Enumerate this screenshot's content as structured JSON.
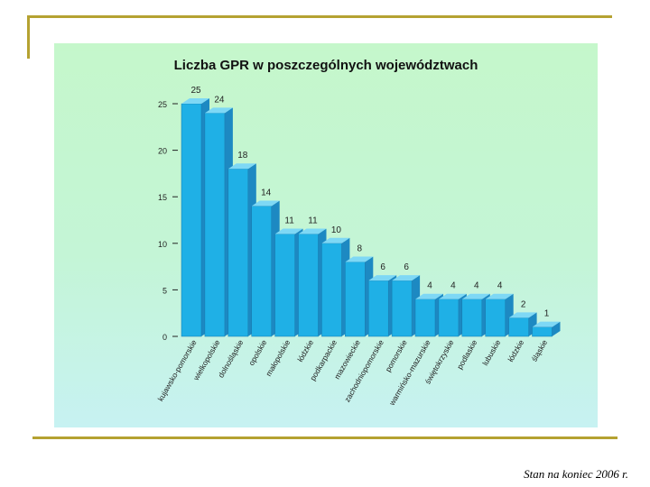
{
  "footer": {
    "caption": "Stan na koniec 2006 r."
  },
  "colors": {
    "bar_front": "#1fb0e6",
    "bar_side": "#1d89c2",
    "bar_top": "#7ed8f5",
    "background": "#c5f5d0",
    "frame": "#b5a231"
  },
  "chart_data": {
    "type": "bar",
    "title": "Liczba GPR w poszczególnych województwach",
    "xlabel": "",
    "ylabel": "",
    "categories": [
      "kujawsko-pomorskie",
      "wielkopolskie",
      "dolnośląskie",
      "opolskie",
      "małopolskie",
      "łódzkie",
      "podkarpackie",
      "mazowieckie",
      "zachodniopomorskie",
      "pomorskie",
      "warmińsko-mazurskie",
      "świętokrzyskie",
      "podlaskie",
      "lubuskie",
      "łódzkie",
      "śląskie"
    ],
    "values": [
      25,
      24,
      18,
      14,
      11,
      11,
      10,
      8,
      6,
      6,
      4,
      4,
      4,
      4,
      2,
      1
    ],
    "ylim": [
      0,
      25
    ],
    "yticks": [
      0,
      5,
      10,
      15,
      20,
      25
    ],
    "grid": false,
    "legend": "none"
  }
}
